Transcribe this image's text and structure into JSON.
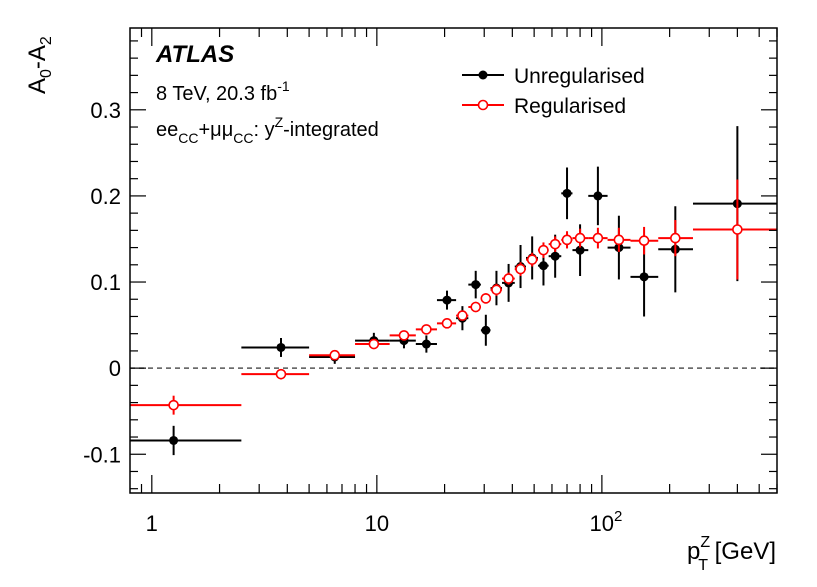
{
  "chart_data": {
    "type": "scatter",
    "experiment": "ATLAS",
    "energy": "8 TeV, 20.3 fb",
    "energy_sup": "-1",
    "channel_ee": "ee",
    "channel_cc1": "CC",
    "channel_plus": "+",
    "channel_mumu": "μμ",
    "channel_cc2": "CC",
    "channel_sep": ": y",
    "channel_ysup": "Z",
    "channel_tail": "-integrated",
    "ylabel": {
      "main": "A",
      "sub1": "0",
      "dash": "-A",
      "sub2": "2"
    },
    "xlabel": {
      "p": "p",
      "sup": "Z",
      "sub": "T",
      "unit": " [GeV]"
    },
    "x_scale": "log",
    "xlim": [
      0.8,
      600
    ],
    "ylim": [
      -0.145,
      0.395
    ],
    "x_ticks": [
      {
        "value": 1,
        "label": "1"
      },
      {
        "value": 10,
        "label": "10"
      },
      {
        "value": 100,
        "label": "10",
        "sup": "2"
      }
    ],
    "y_ticks": [
      {
        "value": -0.1,
        "label": "-0.1"
      },
      {
        "value": 0,
        "label": "0"
      },
      {
        "value": 0.1,
        "label": "0.1"
      },
      {
        "value": 0.2,
        "label": "0.2"
      },
      {
        "value": 0.3,
        "label": "0.3"
      }
    ],
    "reference_line": 0,
    "series": [
      {
        "name": "Unregularised",
        "color": "#000000",
        "marker": "filled-circle",
        "points": [
          {
            "x": 1.25,
            "y": -0.084,
            "xlo": 0.8,
            "xhi": 2.5,
            "err": 0.017
          },
          {
            "x": 3.75,
            "y": 0.024,
            "xlo": 2.5,
            "xhi": 5.0,
            "err": 0.011
          },
          {
            "x": 6.5,
            "y": 0.013,
            "xlo": 5.0,
            "xhi": 8.0,
            "err": 0.008
          },
          {
            "x": 9.7,
            "y": 0.032,
            "xlo": 8.0,
            "xhi": 11.4,
            "err": 0.009
          },
          {
            "x": 13.2,
            "y": 0.032,
            "xlo": 11.4,
            "xhi": 14.9,
            "err": 0.009
          },
          {
            "x": 16.6,
            "y": 0.028,
            "xlo": 14.9,
            "xhi": 18.5,
            "err": 0.01
          },
          {
            "x": 20.5,
            "y": 0.079,
            "xlo": 18.5,
            "xhi": 22.5,
            "err": 0.011
          },
          {
            "x": 24.0,
            "y": 0.058,
            "xlo": 22.5,
            "xhi": 25.5,
            "err": 0.014
          },
          {
            "x": 27.5,
            "y": 0.097,
            "xlo": 25.5,
            "xhi": 29.0,
            "err": 0.016
          },
          {
            "x": 30.5,
            "y": 0.044,
            "xlo": 29.0,
            "xhi": 32.0,
            "err": 0.018
          },
          {
            "x": 34.0,
            "y": 0.093,
            "xlo": 32.0,
            "xhi": 36.0,
            "err": 0.02
          },
          {
            "x": 38.5,
            "y": 0.099,
            "xlo": 36.0,
            "xhi": 41.0,
            "err": 0.022
          },
          {
            "x": 43.5,
            "y": 0.118,
            "xlo": 41.0,
            "xhi": 46.0,
            "err": 0.025
          },
          {
            "x": 49.0,
            "y": 0.128,
            "xlo": 46.0,
            "xhi": 52.0,
            "err": 0.025
          },
          {
            "x": 55.0,
            "y": 0.119,
            "xlo": 52.0,
            "xhi": 58.0,
            "err": 0.023
          },
          {
            "x": 62.0,
            "y": 0.13,
            "xlo": 58.0,
            "xhi": 66.0,
            "err": 0.025
          },
          {
            "x": 70.0,
            "y": 0.203,
            "xlo": 66.0,
            "xhi": 74.0,
            "err": 0.03
          },
          {
            "x": 80.0,
            "y": 0.137,
            "xlo": 74.0,
            "xhi": 87.0,
            "err": 0.03
          },
          {
            "x": 96.0,
            "y": 0.2,
            "xlo": 87.0,
            "xhi": 106.0,
            "err": 0.034
          },
          {
            "x": 119.0,
            "y": 0.14,
            "xlo": 106.0,
            "xhi": 134.0,
            "err": 0.037
          },
          {
            "x": 154.0,
            "y": 0.106,
            "xlo": 134.0,
            "xhi": 178.0,
            "err": 0.046
          },
          {
            "x": 212.0,
            "y": 0.138,
            "xlo": 178.0,
            "xhi": 254.0,
            "err": 0.05
          },
          {
            "x": 400.0,
            "y": 0.191,
            "xlo": 254.0,
            "xhi": 600.0,
            "err": 0.09
          }
        ]
      },
      {
        "name": "Regularised",
        "color": "#ff0000",
        "marker": "open-circle",
        "points": [
          {
            "x": 1.25,
            "y": -0.043,
            "xlo": 0.8,
            "xhi": 2.5,
            "err": 0.011
          },
          {
            "x": 3.75,
            "y": -0.007,
            "xlo": 2.5,
            "xhi": 5.0,
            "err": 0.006
          },
          {
            "x": 6.5,
            "y": 0.015,
            "xlo": 5.0,
            "xhi": 8.0,
            "err": 0.004
          },
          {
            "x": 9.7,
            "y": 0.028,
            "xlo": 8.0,
            "xhi": 11.4,
            "err": 0.004
          },
          {
            "x": 13.2,
            "y": 0.038,
            "xlo": 11.4,
            "xhi": 14.9,
            "err": 0.004
          },
          {
            "x": 16.6,
            "y": 0.045,
            "xlo": 14.9,
            "xhi": 18.5,
            "err": 0.004
          },
          {
            "x": 20.5,
            "y": 0.052,
            "xlo": 18.5,
            "xhi": 22.5,
            "err": 0.005
          },
          {
            "x": 24.0,
            "y": 0.061,
            "xlo": 22.5,
            "xhi": 25.5,
            "err": 0.005
          },
          {
            "x": 27.5,
            "y": 0.071,
            "xlo": 25.5,
            "xhi": 29.0,
            "err": 0.006
          },
          {
            "x": 30.5,
            "y": 0.081,
            "xlo": 29.0,
            "xhi": 32.0,
            "err": 0.006
          },
          {
            "x": 34.0,
            "y": 0.091,
            "xlo": 32.0,
            "xhi": 36.0,
            "err": 0.007
          },
          {
            "x": 38.5,
            "y": 0.104,
            "xlo": 36.0,
            "xhi": 41.0,
            "err": 0.007
          },
          {
            "x": 43.5,
            "y": 0.115,
            "xlo": 41.0,
            "xhi": 46.0,
            "err": 0.008
          },
          {
            "x": 49.0,
            "y": 0.126,
            "xlo": 46.0,
            "xhi": 52.0,
            "err": 0.008
          },
          {
            "x": 55.0,
            "y": 0.137,
            "xlo": 52.0,
            "xhi": 58.0,
            "err": 0.009
          },
          {
            "x": 62.0,
            "y": 0.144,
            "xlo": 58.0,
            "xhi": 66.0,
            "err": 0.009
          },
          {
            "x": 70.0,
            "y": 0.149,
            "xlo": 66.0,
            "xhi": 74.0,
            "err": 0.01
          },
          {
            "x": 80.0,
            "y": 0.151,
            "xlo": 74.0,
            "xhi": 87.0,
            "err": 0.011
          },
          {
            "x": 96.0,
            "y": 0.151,
            "xlo": 87.0,
            "xhi": 106.0,
            "err": 0.012
          },
          {
            "x": 119.0,
            "y": 0.149,
            "xlo": 106.0,
            "xhi": 134.0,
            "err": 0.014
          },
          {
            "x": 154.0,
            "y": 0.148,
            "xlo": 134.0,
            "xhi": 178.0,
            "err": 0.016
          },
          {
            "x": 212.0,
            "y": 0.151,
            "xlo": 178.0,
            "xhi": 254.0,
            "err": 0.021
          },
          {
            "x": 400.0,
            "y": 0.161,
            "xlo": 254.0,
            "xhi": 600.0,
            "err": 0.058
          }
        ]
      }
    ]
  }
}
